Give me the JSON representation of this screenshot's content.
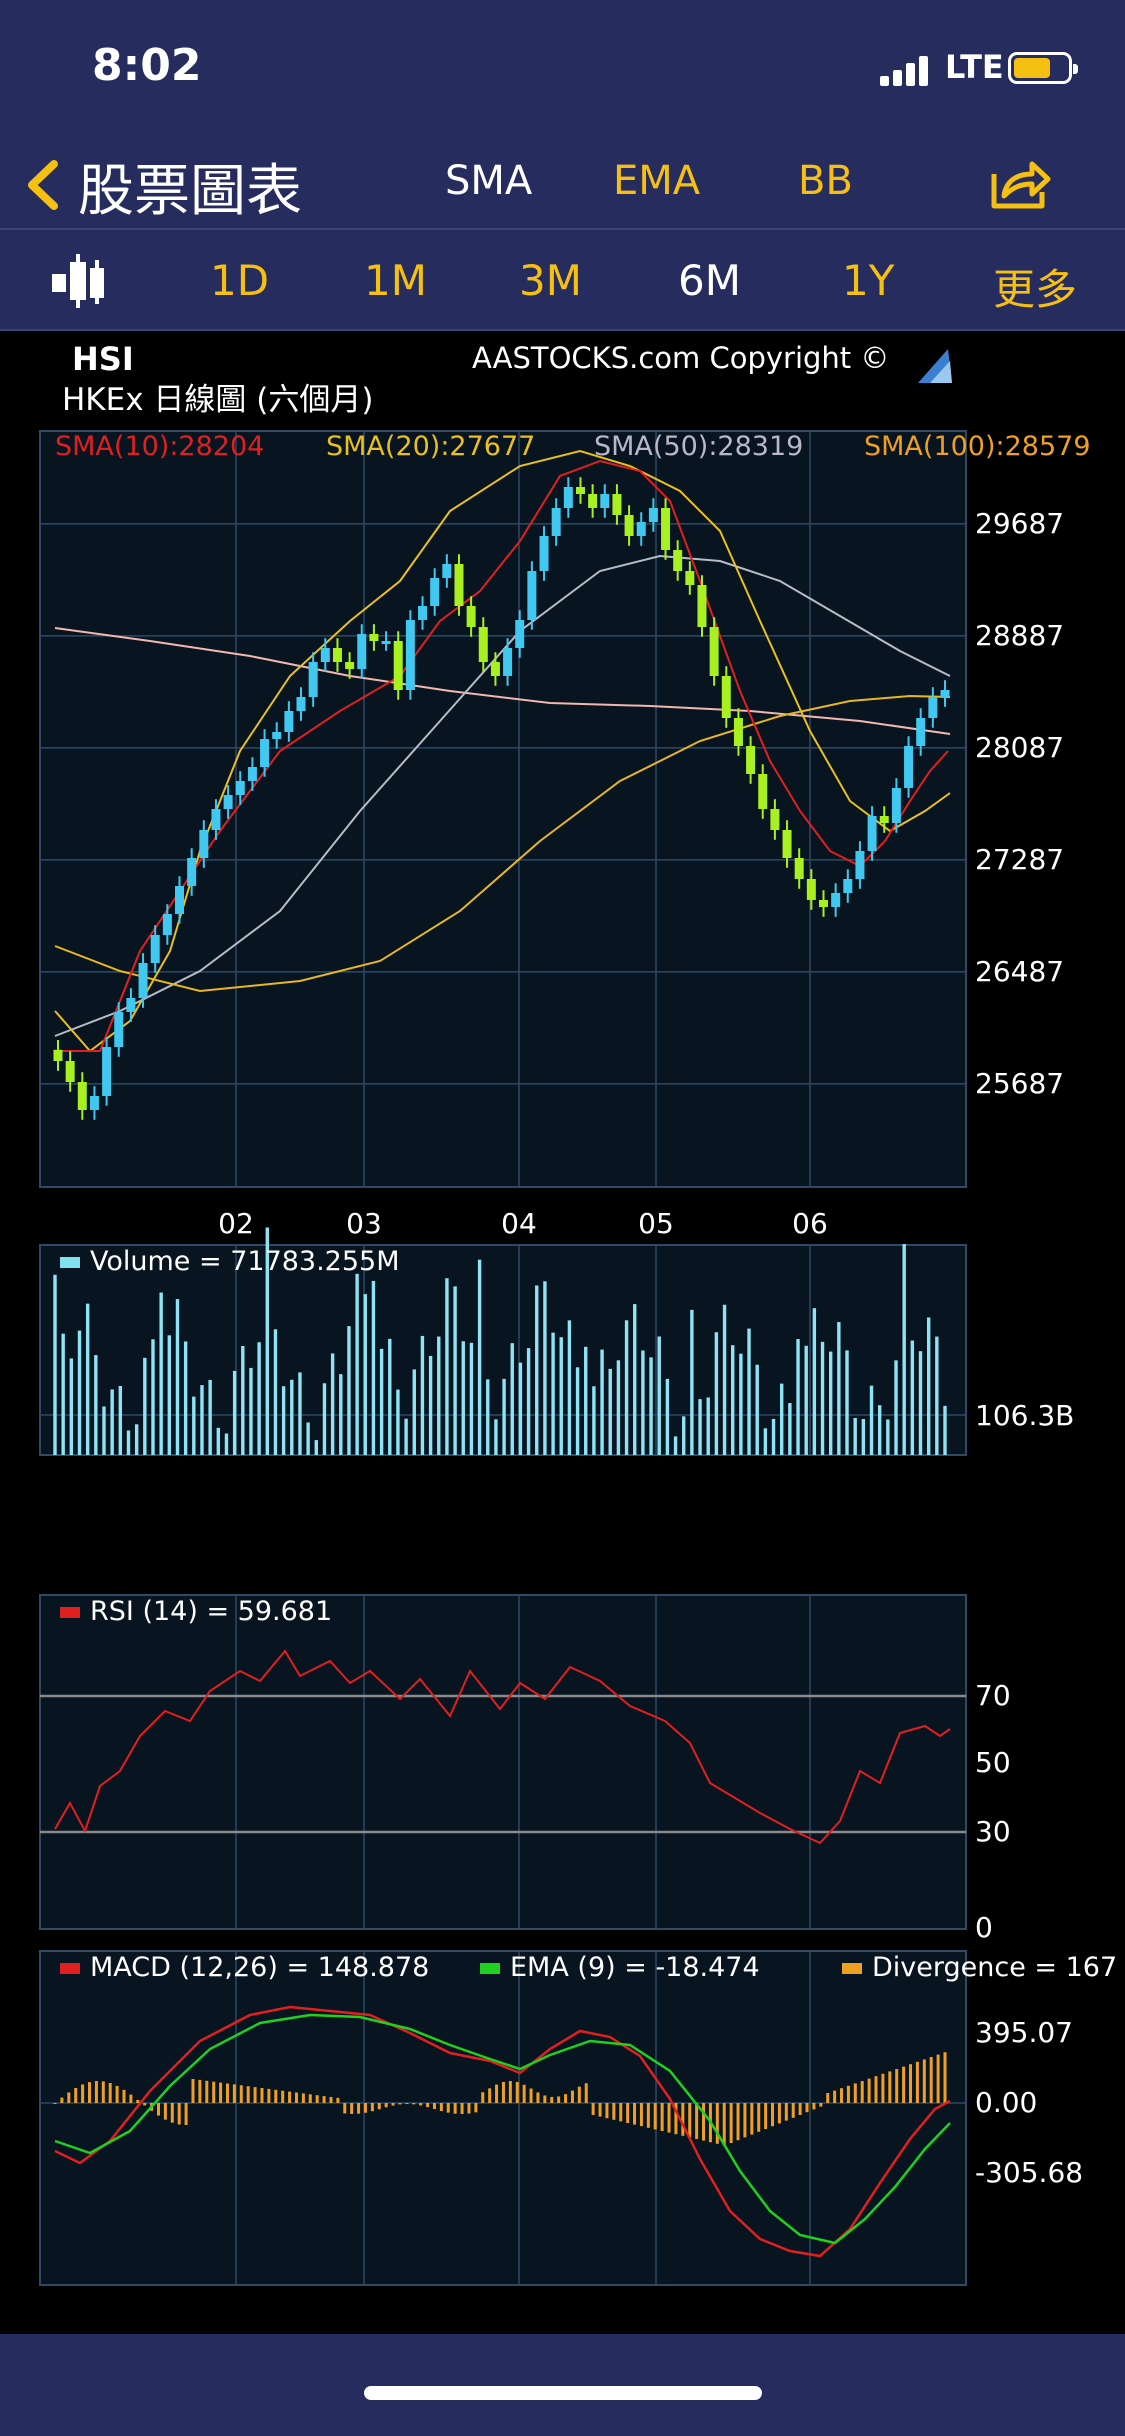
{
  "status": {
    "time": "8:02",
    "network": "LTE"
  },
  "nav": {
    "title": "股票圖表",
    "sma": "SMA",
    "ema": "EMA",
    "bb": "BB"
  },
  "periods": [
    {
      "label": "1D",
      "active": false
    },
    {
      "label": "1M",
      "active": false
    },
    {
      "label": "3M",
      "active": false
    },
    {
      "label": "6M",
      "active": true
    },
    {
      "label": "1Y",
      "active": false
    },
    {
      "label": "更多",
      "active": false
    }
  ],
  "chart_header": {
    "symbol": "HSI",
    "subtitle": "HKEx 日線圖 (六個月)",
    "copyright": "AASTOCKS.com Copyright ©"
  },
  "price_panel": {
    "sma_labels": [
      {
        "text": "SMA(10):28204",
        "color": "#e02020"
      },
      {
        "text": "SMA(20):27677",
        "color": "#e8c020"
      },
      {
        "text": "SMA(50):28319",
        "color": "#b8b8c8"
      },
      {
        "text": "SMA(100):28579",
        "color": "#f0a020"
      }
    ],
    "y_ticks": [
      "29687",
      "28887",
      "28087",
      "27287",
      "26487",
      "25687"
    ],
    "y_tick_values": [
      29687,
      28887,
      28087,
      27287,
      26487,
      25687
    ],
    "x_ticks": [
      "02",
      "03",
      "04",
      "05",
      "06"
    ],
    "ylim": [
      24950,
      30350
    ]
  },
  "volume_panel": {
    "label": "Volume = 71783.255M",
    "tick": "106.3B"
  },
  "rsi_panel": {
    "label": "RSI (14) = 59.681",
    "ticks": [
      "70",
      "50",
      "30",
      "0"
    ]
  },
  "macd_panel": {
    "macd_label": "MACD (12,26) = 148.878",
    "ema_label": "EMA (9) = -18.474",
    "div_label": "Divergence = 167",
    "ticks": [
      "395.07",
      "0.00",
      "-305.68"
    ]
  },
  "chart_data": {
    "type": "line",
    "x_ticks": [
      "02",
      "03",
      "04",
      "05",
      "06"
    ],
    "price_close_approx": [
      25850,
      25700,
      25500,
      25600,
      25950,
      26200,
      26300,
      26550,
      26750,
      26900,
      27100,
      27300,
      27500,
      27650,
      27750,
      27850,
      27950,
      28150,
      28200,
      28350,
      28450,
      28700,
      28800,
      28700,
      28650,
      28900,
      28850,
      28850,
      28500,
      29000,
      29100,
      29300,
      29400,
      29100,
      28950,
      28700,
      28600,
      28800,
      29000,
      29350,
      29600,
      29800,
      29950,
      29900,
      29800,
      29900,
      29750,
      29600,
      29700,
      29800,
      29500,
      29350,
      29250,
      28950,
      28600,
      28300,
      28100,
      27900,
      27650,
      27500,
      27300,
      27150,
      27000,
      26950,
      27050,
      27150,
      27350,
      27600,
      27550,
      27800,
      28100,
      28300,
      28450,
      28500
    ],
    "sma100_approx": [
      28900,
      28300,
      28050,
      27950,
      27950,
      28250,
      28579
    ],
    "sma10": 28204,
    "sma20": 27677,
    "sma50": 28319,
    "sma100": 28579,
    "volume_latest_M": 71783.255,
    "rsi_latest": 59.681,
    "macd_latest": 148.878,
    "ema9_latest": -18.474,
    "divergence_latest": 167
  }
}
